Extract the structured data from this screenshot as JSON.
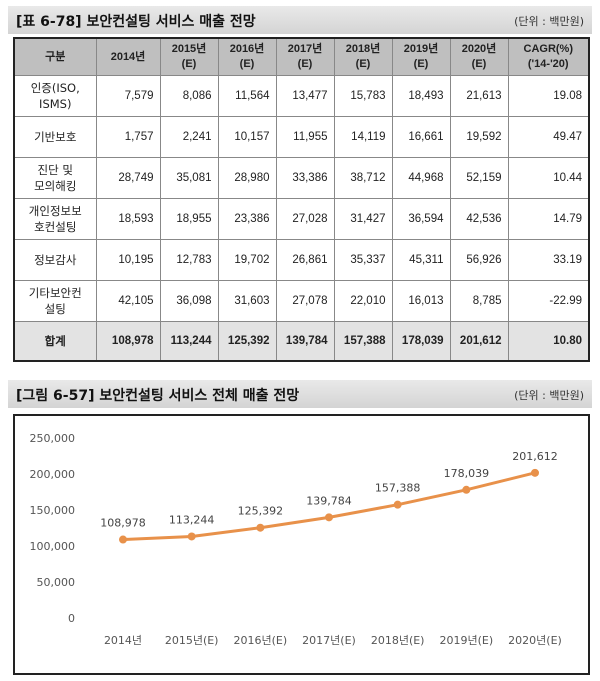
{
  "table": {
    "title": "[표 6-78] 보안컨설팅 서비스 매출 전망",
    "unit": "(단위 : 백만원)",
    "headers": [
      [
        "구분"
      ],
      [
        "2014년"
      ],
      [
        "2015년",
        "(E)"
      ],
      [
        "2016년",
        "(E)"
      ],
      [
        "2017년",
        "(E)"
      ],
      [
        "2018년",
        "(E)"
      ],
      [
        "2019년",
        "(E)"
      ],
      [
        "2020년",
        "(E)"
      ],
      [
        "CAGR(%)",
        "('14-'20)"
      ]
    ],
    "rows": [
      {
        "label": [
          "인증(ISO,",
          "ISMS)"
        ],
        "values": [
          "7,579",
          "8,086",
          "11,564",
          "13,477",
          "15,783",
          "18,493",
          "21,613",
          "19.08"
        ]
      },
      {
        "label": [
          "기반보호"
        ],
        "values": [
          "1,757",
          "2,241",
          "10,157",
          "11,955",
          "14,119",
          "16,661",
          "19,592",
          "49.47"
        ]
      },
      {
        "label": [
          "진단 및",
          "모의해킹"
        ],
        "values": [
          "28,749",
          "35,081",
          "28,980",
          "33,386",
          "38,712",
          "44,968",
          "52,159",
          "10.44"
        ]
      },
      {
        "label": [
          "개인정보보",
          "호컨설팅"
        ],
        "values": [
          "18,593",
          "18,955",
          "23,386",
          "27,028",
          "31,427",
          "36,594",
          "42,536",
          "14.79"
        ]
      },
      {
        "label": [
          "정보감사"
        ],
        "values": [
          "10,195",
          "12,783",
          "19,702",
          "26,861",
          "35,337",
          "45,311",
          "56,926",
          "33.19"
        ]
      },
      {
        "label": [
          "기타보안컨",
          "설팅"
        ],
        "values": [
          "42,105",
          "36,098",
          "31,603",
          "27,078",
          "22,010",
          "16,013",
          "8,785",
          "-22.99"
        ]
      }
    ],
    "total": {
      "label": "합계",
      "values": [
        "108,978",
        "113,244",
        "125,392",
        "139,784",
        "157,388",
        "178,039",
        "201,612",
        "10.80"
      ]
    }
  },
  "figure": {
    "title": "[그림 6-57] 보안컨설팅 서비스 전체 매출 전망",
    "unit": "(단위 : 백만원)"
  },
  "chart_data": {
    "type": "line",
    "categories": [
      "2014년",
      "2015년(E)",
      "2016년(E)",
      "2017년(E)",
      "2018년(E)",
      "2019년(E)",
      "2020년(E)"
    ],
    "values": [
      108978,
      113244,
      125392,
      139784,
      157388,
      178039,
      201612
    ],
    "data_labels": [
      "108,978",
      "113,244",
      "125,392",
      "139,784",
      "157,388",
      "178,039",
      "201,612"
    ],
    "ylim": [
      0,
      250000
    ],
    "yticks": [
      0,
      50000,
      100000,
      150000,
      200000,
      250000
    ],
    "ytick_labels": [
      "0",
      "50,000",
      "100,000",
      "150,000",
      "200,000",
      "250,000"
    ],
    "line_color": "#E8914A",
    "grid": false
  }
}
